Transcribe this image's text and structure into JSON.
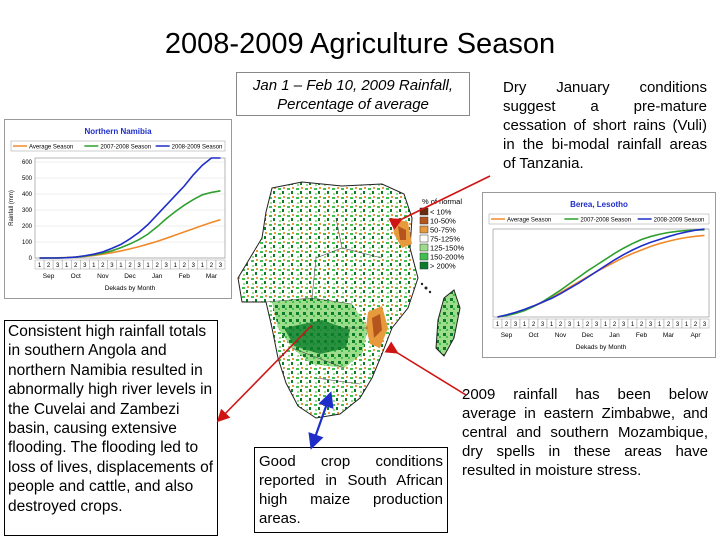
{
  "title": "2008-2009 Agriculture Season",
  "map_caption_line1": "Jan 1 – Feb 10, 2009 Rainfall,",
  "map_caption_line2": "Percentage of average",
  "tanzania_text": "Dry January conditions suggest a pre-mature cessation of short rains (Vuli) in the bi-modal rainfall areas of Tanzania.",
  "namibia_text": "Consistent high rainfall totals in southern Angola and northern Namibia resulted in abnormally high river levels in the Cuvelai and Zambezi basin, causing extensive flooding. The flooding led to loss of lives, displacements of people and cattle, and also destroyed crops.",
  "south_africa_text": "Good crop conditions reported in South African high maize production areas.",
  "zimbabwe_text": "2009 rainfall has been below average in eastern Zimbabwe, and central and southern Mozambique, dry spells in these areas have resulted in moisture stress.",
  "map_legend": {
    "title": "% of normal",
    "items": [
      {
        "label": "< 10%",
        "color": "#6b2a0e"
      },
      {
        "label": "10-50%",
        "color": "#b5541d"
      },
      {
        "label": "50-75%",
        "color": "#e79a3c"
      },
      {
        "label": "75-125%",
        "color": "#ffffff"
      },
      {
        "label": "125-150%",
        "color": "#9cdc8a"
      },
      {
        "label": "150-200%",
        "color": "#3fbf4f"
      },
      {
        "label": "> 200%",
        "color": "#0b7d2a"
      }
    ]
  },
  "chart_data": [
    {
      "type": "line",
      "title": "Northern Namibia",
      "ylabel": "Rainfall (mm)",
      "xlabel": "Dekads by Month",
      "ylim": [
        0,
        600
      ],
      "yticks": [
        0,
        100,
        200,
        300,
        400,
        500,
        600
      ],
      "months": [
        "Sep",
        "Oct",
        "Nov",
        "Dec",
        "Jan",
        "Feb",
        "Mar"
      ],
      "dekad_labels": [
        "1",
        "2",
        "3",
        "1",
        "2",
        "3",
        "1",
        "2",
        "3",
        "1",
        "2",
        "3",
        "1",
        "2",
        "3",
        "1",
        "2",
        "3",
        "1",
        "2",
        "3"
      ],
      "series": [
        {
          "name": "Average Season",
          "color": "#f08a2a",
          "values": [
            0,
            0,
            1,
            3,
            6,
            10,
            16,
            24,
            33,
            44,
            57,
            71,
            87,
            104,
            123,
            143,
            163,
            183,
            203,
            222,
            240
          ]
        },
        {
          "name": "2007-2008 Season",
          "color": "#2ea02e",
          "values": [
            0,
            0,
            0,
            2,
            5,
            12,
            20,
            30,
            45,
            65,
            88,
            115,
            150,
            195,
            245,
            290,
            330,
            365,
            395,
            410,
            420
          ]
        },
        {
          "name": "2008-2009 Season",
          "color": "#1f2ec9",
          "values": [
            0,
            0,
            0,
            2,
            6,
            14,
            24,
            38,
            60,
            85,
            120,
            160,
            210,
            270,
            330,
            390,
            450,
            520,
            580,
            625,
            625
          ]
        }
      ]
    },
    {
      "type": "line",
      "title": "Berea, Lesotho",
      "xlabel": "Dekads by Month",
      "months": [
        "Sep",
        "Oct",
        "Nov",
        "Dec",
        "Jan",
        "Feb",
        "Mar",
        "Apr"
      ],
      "dekad_labels": [
        "1",
        "2",
        "3",
        "1",
        "2",
        "3",
        "1",
        "2",
        "3",
        "1",
        "2",
        "3",
        "1",
        "2",
        "3",
        "1",
        "2",
        "3",
        "1",
        "2",
        "3",
        "1",
        "2",
        "3"
      ],
      "series": [
        {
          "name": "Average Season",
          "color": "#f08a2a",
          "values": [
            0,
            15,
            35,
            60,
            90,
            125,
            165,
            210,
            255,
            300,
            345,
            390,
            430,
            470,
            510,
            545,
            575,
            605,
            630,
            650,
            668,
            682,
            692,
            700
          ]
        },
        {
          "name": "2007-2008 Season",
          "color": "#2ea02e",
          "values": [
            0,
            12,
            30,
            55,
            90,
            130,
            180,
            230,
            285,
            340,
            395,
            445,
            495,
            545,
            590,
            630,
            665,
            690,
            710,
            725,
            735,
            742,
            746,
            748
          ]
        },
        {
          "name": "2008-2009 Season",
          "color": "#1f2ec9",
          "values": [
            0,
            18,
            40,
            65,
            95,
            128,
            160,
            200,
            245,
            290,
            340,
            390,
            440,
            490,
            535,
            575,
            610,
            640,
            665,
            690,
            712,
            730,
            745,
            755
          ]
        }
      ]
    }
  ]
}
